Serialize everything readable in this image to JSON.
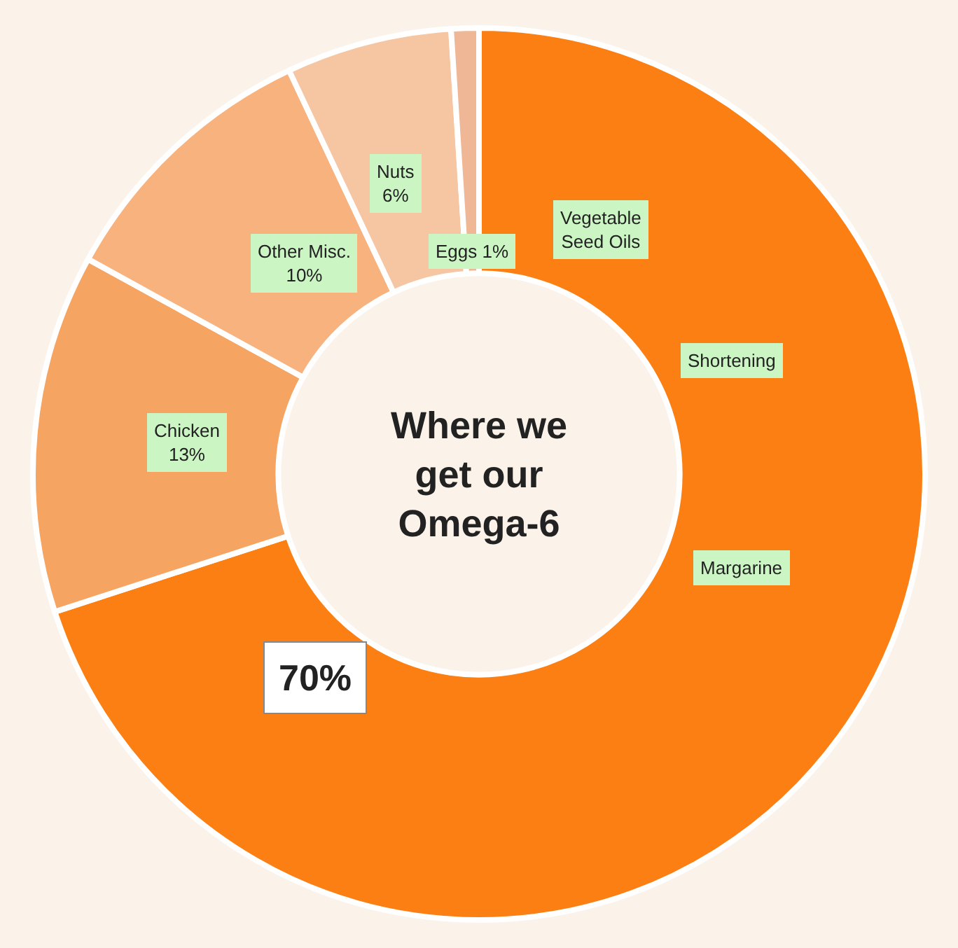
{
  "chart_data": {
    "type": "donut",
    "title": "Where we get our Omega-6",
    "categories": [
      null,
      "Chicken",
      "Other Misc.",
      "Nuts",
      "Eggs"
    ],
    "values": [
      70,
      13,
      10,
      6,
      1
    ],
    "value_labels": [
      "70%",
      "13%",
      "10%",
      "6%",
      "1%"
    ],
    "colors": [
      "#fb7f12",
      "#f6a461",
      "#f8b27d",
      "#f6c6a3",
      "#efb796"
    ],
    "annotations": [
      "Vegetable Seed Oils",
      "Shortening",
      "Margarine"
    ],
    "legend": false
  }
}
